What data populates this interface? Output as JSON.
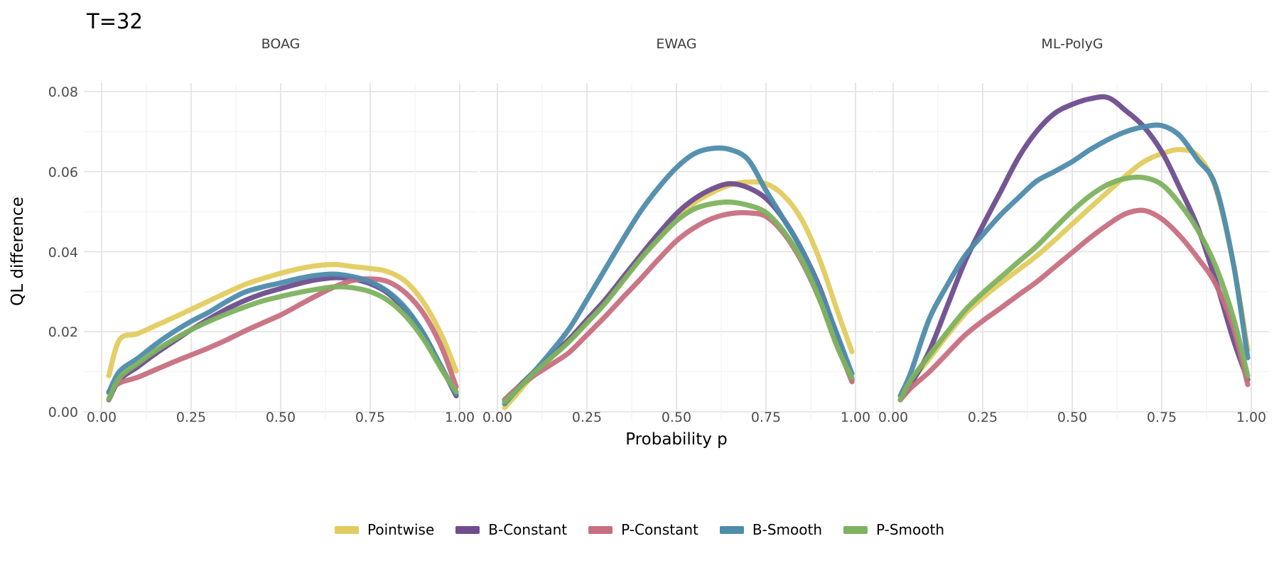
{
  "title": "T=32",
  "chart_data": {
    "type": "line",
    "title": "T=32",
    "xlabel": "Probability p",
    "ylabel": "QL difference",
    "xlim": [
      0,
      1
    ],
    "ylim": [
      0,
      0.08
    ],
    "grid": true,
    "legend_position": "bottom",
    "x_tick_labels": [
      "0.00",
      "0.25",
      "0.50",
      "0.75",
      "1.00"
    ],
    "y_tick_labels": [
      "0.00",
      "0.02",
      "0.04",
      "0.06",
      "0.08"
    ],
    "x_tick_values": [
      0,
      0.25,
      0.5,
      0.75,
      1
    ],
    "y_tick_values": [
      0,
      0.02,
      0.04,
      0.06,
      0.08
    ],
    "x": [
      0.02,
      0.05,
      0.1,
      0.15,
      0.2,
      0.25,
      0.3,
      0.35,
      0.4,
      0.45,
      0.5,
      0.55,
      0.6,
      0.65,
      0.7,
      0.75,
      0.8,
      0.85,
      0.9,
      0.95,
      0.99
    ],
    "series_colors": {
      "Pointwise": "#E2CC5F",
      "B-Constant": "#6E4D8E",
      "P-Constant": "#C76F80",
      "B-Smooth": "#4E8BAC",
      "P-Smooth": "#7DB25F"
    },
    "facets": [
      {
        "label": "BOAG",
        "series": [
          {
            "name": "Pointwise",
            "values": [
              0.009,
              0.018,
              0.0195,
              0.0215,
              0.0235,
              0.0256,
              0.0277,
              0.0298,
              0.0318,
              0.0333,
              0.0346,
              0.0357,
              0.0365,
              0.0368,
              0.0363,
              0.0358,
              0.035,
              0.0325,
              0.0272,
              0.019,
              0.0102
            ]
          },
          {
            "name": "B-Constant",
            "values": [
              0.003,
              0.008,
              0.0112,
              0.0145,
              0.0175,
              0.0205,
              0.0232,
              0.0257,
              0.0278,
              0.0295,
              0.0308,
              0.032,
              0.033,
              0.0335,
              0.0332,
              0.032,
              0.0296,
              0.0252,
              0.019,
              0.011,
              0.004
            ]
          },
          {
            "name": "P-Constant",
            "values": [
              0.005,
              0.0072,
              0.0086,
              0.0105,
              0.0124,
              0.0142,
              0.016,
              0.018,
              0.0202,
              0.0222,
              0.0242,
              0.0266,
              0.029,
              0.0312,
              0.0328,
              0.0332,
              0.0325,
              0.0296,
              0.0244,
              0.016,
              0.0062
            ]
          },
          {
            "name": "B-Smooth",
            "values": [
              0.0048,
              0.0101,
              0.0133,
              0.0168,
              0.0199,
              0.0226,
              0.0249,
              0.0276,
              0.0299,
              0.0312,
              0.0322,
              0.0333,
              0.0341,
              0.0344,
              0.0338,
              0.0325,
              0.03,
              0.0258,
              0.0194,
              0.011,
              0.0045
            ]
          },
          {
            "name": "P-Smooth",
            "values": [
              0.0032,
              0.0085,
              0.012,
              0.0152,
              0.018,
              0.0205,
              0.0226,
              0.0245,
              0.0262,
              0.0277,
              0.0288,
              0.0298,
              0.0306,
              0.0312,
              0.031,
              0.03,
              0.0278,
              0.0238,
              0.018,
              0.0105,
              0.005
            ]
          }
        ]
      },
      {
        "label": "EWAG",
        "series": [
          {
            "name": "Pointwise",
            "values": [
              0.001,
              0.004,
              0.0092,
              0.0135,
              0.0178,
              0.0225,
              0.0273,
              0.033,
              0.0385,
              0.0437,
              0.0483,
              0.0522,
              0.0548,
              0.0567,
              0.0574,
              0.057,
              0.054,
              0.048,
              0.038,
              0.025,
              0.015
            ]
          },
          {
            "name": "B-Constant",
            "values": [
              0.003,
              0.0055,
              0.0098,
              0.014,
              0.0181,
              0.023,
              0.0279,
              0.0335,
              0.0391,
              0.0445,
              0.0495,
              0.0532,
              0.0557,
              0.057,
              0.056,
              0.0533,
              0.048,
              0.0405,
              0.031,
              0.0185,
              0.008
            ]
          },
          {
            "name": "P-Constant",
            "values": [
              0.003,
              0.0055,
              0.0089,
              0.0118,
              0.0148,
              0.0192,
              0.0237,
              0.0285,
              0.0332,
              0.0381,
              0.0427,
              0.046,
              0.0483,
              0.0495,
              0.0497,
              0.0488,
              0.0445,
              0.0375,
              0.028,
              0.0165,
              0.0075
            ]
          },
          {
            "name": "B-Smooth",
            "values": [
              0.002,
              0.005,
              0.0098,
              0.015,
              0.0207,
              0.028,
              0.0355,
              0.043,
              0.0501,
              0.056,
              0.061,
              0.0645,
              0.0658,
              0.0655,
              0.063,
              0.0553,
              0.048,
              0.0405,
              0.0305,
              0.019,
              0.0095
            ]
          },
          {
            "name": "P-Smooth",
            "values": [
              0.0025,
              0.005,
              0.0095,
              0.0135,
              0.0175,
              0.0222,
              0.027,
              0.0326,
              0.0382,
              0.0432,
              0.0477,
              0.0507,
              0.052,
              0.0524,
              0.0516,
              0.0498,
              0.045,
              0.038,
              0.028,
              0.016,
              0.0085
            ]
          }
        ]
      },
      {
        "label": "ML-PolyG",
        "series": [
          {
            "name": "Pointwise",
            "values": [
              0.003,
              0.0075,
              0.0132,
              0.019,
              0.0244,
              0.0285,
              0.0321,
              0.0355,
              0.0389,
              0.0428,
              0.0469,
              0.051,
              0.055,
              0.059,
              0.0625,
              0.0645,
              0.0655,
              0.064,
              0.056,
              0.037,
              0.0155
            ]
          },
          {
            "name": "B-Constant",
            "values": [
              0.003,
              0.007,
              0.015,
              0.0262,
              0.0374,
              0.0465,
              0.055,
              0.0635,
              0.07,
              0.0745,
              0.0768,
              0.0782,
              0.0785,
              0.0752,
              0.0712,
              0.065,
              0.056,
              0.0462,
              0.033,
              0.018,
              0.008
            ]
          },
          {
            "name": "P-Constant",
            "values": [
              0.003,
              0.006,
              0.0099,
              0.0145,
              0.0191,
              0.0227,
              0.0259,
              0.0292,
              0.0324,
              0.0361,
              0.0398,
              0.0435,
              0.0468,
              0.0495,
              0.0503,
              0.0482,
              0.044,
              0.0385,
              0.032,
              0.021,
              0.0068
            ]
          },
          {
            "name": "B-Smooth",
            "values": [
              0.004,
              0.01,
              0.023,
              0.0315,
              0.0389,
              0.0442,
              0.0492,
              0.0535,
              0.0576,
              0.06,
              0.0625,
              0.0655,
              0.068,
              0.07,
              0.0712,
              0.0715,
              0.069,
              0.063,
              0.0565,
              0.037,
              0.0135
            ]
          },
          {
            "name": "P-Smooth",
            "values": [
              0.003,
              0.008,
              0.014,
              0.0198,
              0.0253,
              0.0297,
              0.0336,
              0.0375,
              0.0413,
              0.0458,
              0.0502,
              0.054,
              0.0568,
              0.0583,
              0.0585,
              0.0568,
              0.052,
              0.0455,
              0.0365,
              0.0235,
              0.009
            ]
          }
        ]
      }
    ]
  },
  "legend": {
    "items": [
      {
        "label": "Pointwise",
        "color": "#E2CC5F"
      },
      {
        "label": "B-Constant",
        "color": "#6E4D8E"
      },
      {
        "label": "P-Constant",
        "color": "#C76F80"
      },
      {
        "label": "B-Smooth",
        "color": "#4E8BAC"
      },
      {
        "label": "P-Smooth",
        "color": "#7DB25F"
      }
    ]
  }
}
